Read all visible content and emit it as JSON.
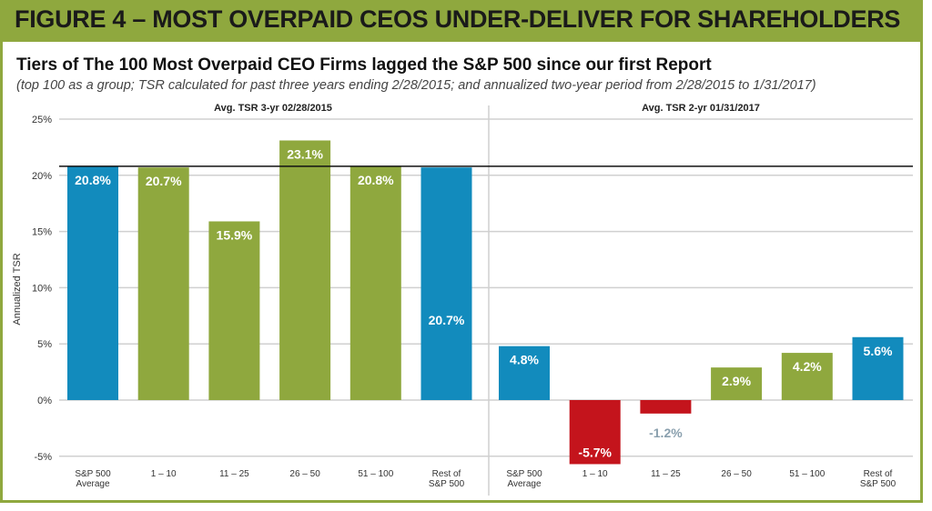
{
  "figure_title": "FIGURE 4 – MOST OVERPAID CEOS UNDER-DELIVER FOR SHAREHOLDERS",
  "subtitle": "Tiers of The 100 Most Overpaid CEO Firms lagged the S&P 500 since our first Report",
  "note": "(top 100 as a group; TSR calculated for past three years ending 2/28/2015; and annualized two-year period from 2/28/2015 to 1/31/2017)",
  "colors": {
    "sp500": "#128bbd",
    "tier_positive": "#8fa83e",
    "tier_negative": "#c4141c",
    "frame": "#8fa83e"
  },
  "chart_data": {
    "type": "bar",
    "ylabel": "Annualized TSR",
    "ylim": [
      -5,
      25
    ],
    "yticks": [
      "25%",
      "20%",
      "15%",
      "10%",
      "5%",
      "0%",
      "-5%"
    ],
    "grid": true,
    "reference_line": 20.8,
    "panels": [
      {
        "label": "Avg. TSR 3-yr 02/28/2015",
        "categories": [
          [
            "S&P 500",
            "Average"
          ],
          [
            "1 – 10"
          ],
          [
            "11 – 25"
          ],
          [
            "26 – 50"
          ],
          [
            "51 – 100"
          ],
          [
            "Rest of",
            "S&P 500"
          ]
        ],
        "values": [
          20.8,
          20.7,
          15.9,
          23.1,
          20.8,
          20.7
        ],
        "data_labels": [
          "20.8%",
          "20.7%",
          "15.9%",
          "23.1%",
          "20.8%",
          "20.7%"
        ]
      },
      {
        "label": "Avg. TSR 2-yr 01/31/2017",
        "categories": [
          [
            "S&P 500",
            "Average"
          ],
          [
            "1 – 10"
          ],
          [
            "11 – 25"
          ],
          [
            "26 – 50"
          ],
          [
            "51 – 100"
          ],
          [
            "Rest of",
            "S&P 500"
          ]
        ],
        "values": [
          4.8,
          -5.7,
          -1.2,
          2.9,
          4.2,
          5.6
        ],
        "data_labels": [
          "4.8%",
          "-5.7%",
          "-1.2%",
          "2.9%",
          "4.2%",
          "5.6%"
        ]
      }
    ]
  }
}
